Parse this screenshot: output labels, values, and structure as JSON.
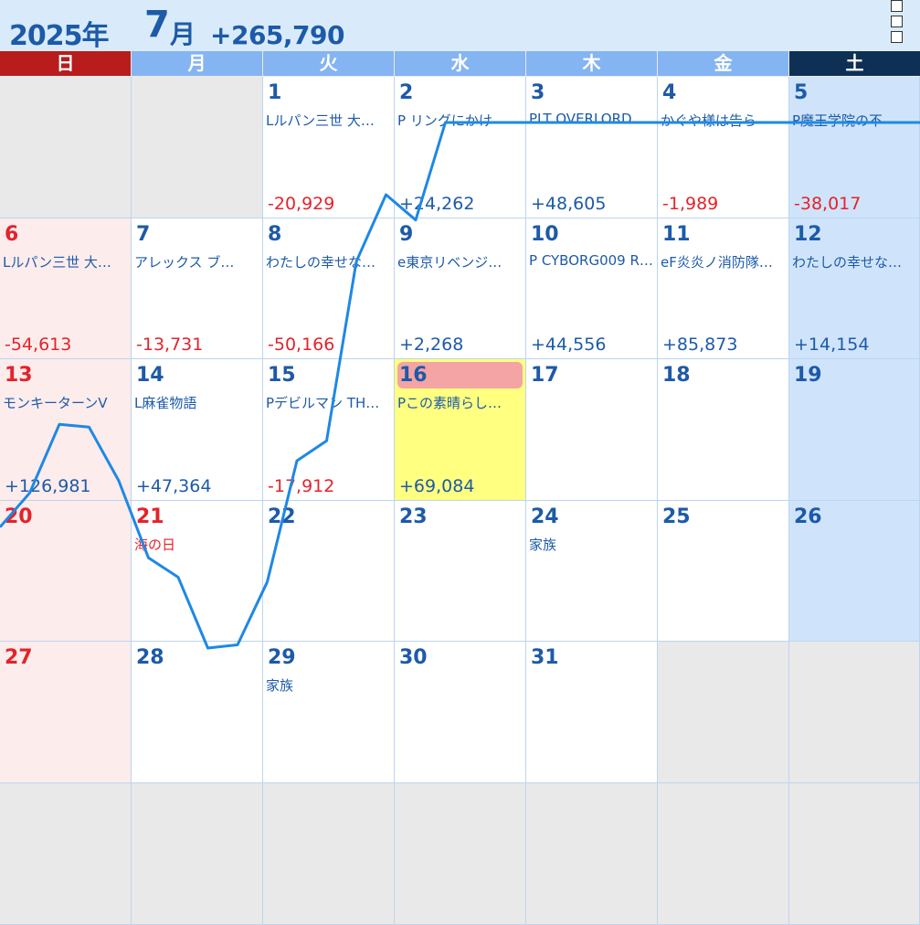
{
  "header": {
    "year": "2025年",
    "month_num": "7",
    "month_suffix": "月",
    "total": "+265,790"
  },
  "weekdays": [
    "日",
    "月",
    "火",
    "水",
    "木",
    "金",
    "土"
  ],
  "colors": {
    "positive": "#1d5aa8",
    "negative": "#e3232b",
    "sunday_header": "#b81c1c",
    "saturday_header": "#0e3055",
    "weekday_header": "#85b4f3",
    "today_fill": "#ffff80",
    "today_marker": "#f4a4a4",
    "trend_line": "#1e88e5"
  },
  "weeks": [
    [
      {
        "day": "",
        "event": "",
        "amount": ""
      },
      {
        "day": "",
        "event": "",
        "amount": ""
      },
      {
        "day": "1",
        "event": "Lルパン三世 大…",
        "amount": "-20,929"
      },
      {
        "day": "2",
        "event": "P リングにかけ",
        "amount": "+24,262"
      },
      {
        "day": "3",
        "event": "PLT OVERLORD",
        "amount": "+48,605"
      },
      {
        "day": "4",
        "event": "かぐや様は告ら",
        "amount": "-1,989"
      },
      {
        "day": "5",
        "event": "P魔王学院の不",
        "amount": "-38,017"
      }
    ],
    [
      {
        "day": "6",
        "event": "Lルパン三世 大…",
        "amount": "-54,613"
      },
      {
        "day": "7",
        "event": "アレックス ブ…",
        "amount": "-13,731"
      },
      {
        "day": "8",
        "event": "わたしの幸せな…",
        "amount": "-50,166"
      },
      {
        "day": "9",
        "event": "e東京リベンジ…",
        "amount": "+2,268"
      },
      {
        "day": "10",
        "event": "P CYBORG009 R…",
        "amount": "+44,556"
      },
      {
        "day": "11",
        "event": "eF炎炎ノ消防隊…",
        "amount": "+85,873"
      },
      {
        "day": "12",
        "event": "わたしの幸せな…",
        "amount": "+14,154"
      }
    ],
    [
      {
        "day": "13",
        "event": "モンキーターンV",
        "amount": "+126,981"
      },
      {
        "day": "14",
        "event": "L麻雀物語",
        "amount": "+47,364"
      },
      {
        "day": "15",
        "event": "Pデビルマン TH…",
        "amount": "-17,912"
      },
      {
        "day": "16",
        "event": "Pこの素晴らし…",
        "amount": "+69,084"
      },
      {
        "day": "17",
        "event": "",
        "amount": ""
      },
      {
        "day": "18",
        "event": "",
        "amount": ""
      },
      {
        "day": "19",
        "event": "",
        "amount": ""
      }
    ],
    [
      {
        "day": "20",
        "event": "",
        "amount": ""
      },
      {
        "day": "21",
        "event": "海の日",
        "amount": ""
      },
      {
        "day": "22",
        "event": "",
        "amount": ""
      },
      {
        "day": "23",
        "event": "",
        "amount": ""
      },
      {
        "day": "24",
        "event": "家族",
        "amount": ""
      },
      {
        "day": "25",
        "event": "",
        "amount": ""
      },
      {
        "day": "26",
        "event": "",
        "amount": ""
      }
    ],
    [
      {
        "day": "27",
        "event": "",
        "amount": ""
      },
      {
        "day": "28",
        "event": "",
        "amount": ""
      },
      {
        "day": "29",
        "event": "家族",
        "amount": ""
      },
      {
        "day": "30",
        "event": "",
        "amount": ""
      },
      {
        "day": "31",
        "event": "",
        "amount": ""
      },
      {
        "day": "",
        "event": "",
        "amount": ""
      },
      {
        "day": "",
        "event": "",
        "amount": ""
      }
    ],
    [
      {
        "day": "",
        "event": "",
        "amount": ""
      },
      {
        "day": "",
        "event": "",
        "amount": ""
      },
      {
        "day": "",
        "event": "",
        "amount": ""
      },
      {
        "day": "",
        "event": "",
        "amount": ""
      },
      {
        "day": "",
        "event": "",
        "amount": ""
      },
      {
        "day": "",
        "event": "",
        "amount": ""
      },
      {
        "day": "",
        "event": "",
        "amount": ""
      }
    ]
  ],
  "today": "16",
  "holidays": [
    "21"
  ],
  "cumulative_balance_by_day": [
    {
      "day": 1,
      "value": -20929
    },
    {
      "day": 2,
      "value": 3333
    },
    {
      "day": 3,
      "value": 51938
    },
    {
      "day": 4,
      "value": 49949
    },
    {
      "day": 5,
      "value": 11932
    },
    {
      "day": 6,
      "value": -42681
    },
    {
      "day": 7,
      "value": -56412
    },
    {
      "day": 8,
      "value": -106578
    },
    {
      "day": 9,
      "value": -104310
    },
    {
      "day": 10,
      "value": -59754
    },
    {
      "day": 11,
      "value": 26119
    },
    {
      "day": 12,
      "value": 40273
    },
    {
      "day": 13,
      "value": 167254
    },
    {
      "day": 14,
      "value": 214618
    },
    {
      "day": 15,
      "value": 196706
    },
    {
      "day": 16,
      "value": 265790
    }
  ]
}
